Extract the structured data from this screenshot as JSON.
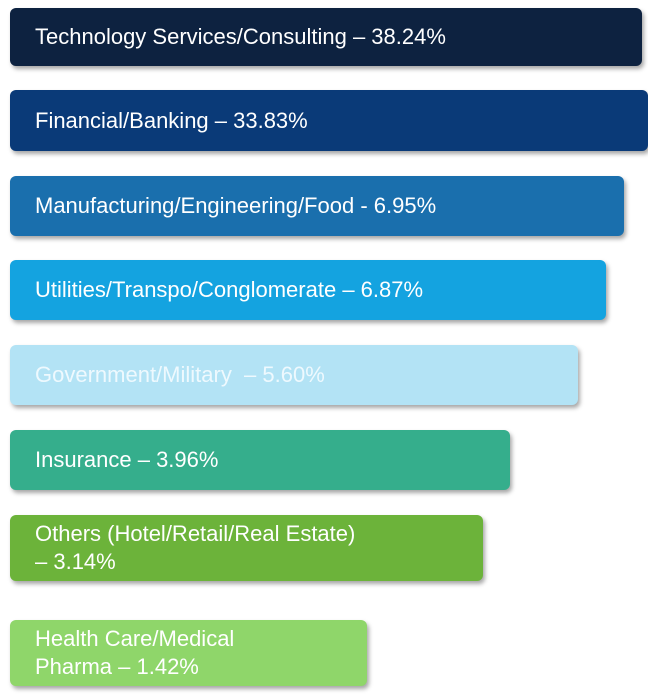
{
  "items": [
    {
      "lines": [
        "Technology Services/Consulting – 38.24%"
      ]
    },
    {
      "lines": [
        "Financial/Banking – 33.83%"
      ]
    },
    {
      "lines": [
        "Manufacturing/Engineering/Food - 6.95%"
      ]
    },
    {
      "lines": [
        "Utilities/Transpo/Conglomerate – 6.87%"
      ]
    },
    {
      "lines": [
        "Government/Military  – 5.60%"
      ]
    },
    {
      "lines": [
        "Insurance – 3.96%"
      ]
    },
    {
      "lines": [
        "Others (Hotel/Retail/Real Estate)",
        "– 3.14%"
      ]
    },
    {
      "lines": [
        "Health Care/Medical",
        "Pharma – 1.42%"
      ]
    }
  ]
}
